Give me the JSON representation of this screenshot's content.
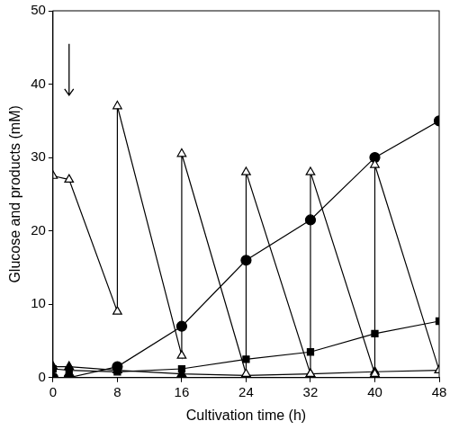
{
  "chart_data": {
    "type": "line",
    "x_label": "Cultivation time (h)",
    "y_label": "Glucose and products (mM)",
    "xlim": [
      0,
      48
    ],
    "xticks": [
      0,
      8,
      16,
      24,
      32,
      40,
      48
    ],
    "ylim": [
      0,
      50
    ],
    "yticks": [
      0,
      10,
      20,
      30,
      40,
      50
    ],
    "grid": false,
    "series": [
      {
        "color": "#000000",
        "marker": "open_triangle",
        "line_style": "solid",
        "x": [
          0,
          2,
          8,
          8,
          16,
          16,
          24,
          24,
          32,
          32,
          40,
          40,
          48
        ],
        "values": [
          27.5,
          27,
          9,
          37,
          3,
          30.5,
          0.5,
          28,
          0.5,
          28,
          0.5,
          29,
          1
        ]
      },
      {
        "color": "#000000",
        "marker": "circle",
        "line_style": "solid",
        "x": [
          0,
          2,
          8,
          16,
          24,
          32,
          40,
          48
        ],
        "values": [
          0,
          0,
          1.5,
          7,
          16,
          21.5,
          30,
          35
        ]
      },
      {
        "color": "#000000",
        "marker": "square",
        "line_style": "solid",
        "x": [
          0,
          2,
          8,
          16,
          24,
          32,
          40,
          48
        ],
        "values": [
          1.2,
          1,
          0.8,
          1.2,
          2.5,
          3.5,
          6,
          7.7
        ]
      },
      {
        "color": "#000000",
        "marker": "triangle",
        "line_style": "solid",
        "x": [
          0,
          2,
          8,
          16,
          24,
          32,
          40,
          48
        ],
        "values": [
          1.5,
          1.5,
          1,
          0.5,
          0.3,
          0.5,
          0.8,
          1
        ]
      }
    ],
    "arrow": {
      "x": 2,
      "y": [
        45.5,
        38.5
      ]
    }
  }
}
